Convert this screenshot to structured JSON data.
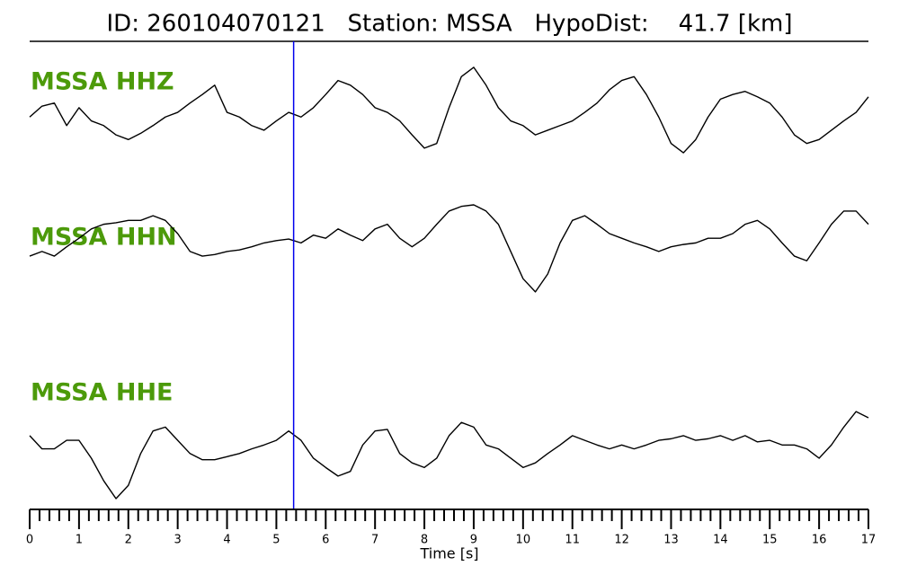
{
  "chart_data": {
    "type": "line",
    "title": "ID: 260104070121   Station: MSSA   HypoDist:    41.7 [km]",
    "xlabel": "Time [s]",
    "xlim": [
      0,
      17
    ],
    "ylim": [
      -1,
      1
    ],
    "xticks": [
      0,
      1,
      2,
      3,
      4,
      5,
      6,
      7,
      8,
      9,
      10,
      11,
      12,
      13,
      14,
      15,
      16,
      17
    ],
    "xminorticks": [
      0.2,
      0.4,
      0.6,
      0.8,
      1.2,
      1.4,
      1.6,
      1.8,
      2.2,
      2.4,
      2.6,
      2.8,
      3.2,
      3.4,
      3.6,
      3.8,
      4.2,
      4.4,
      4.6,
      4.8,
      5.2,
      5.4,
      5.6,
      5.8,
      6.2,
      6.4,
      6.6,
      6.8,
      7.2,
      7.4,
      7.6,
      7.8,
      8.2,
      8.4,
      8.6,
      8.8,
      9.2,
      9.4,
      9.6,
      9.8,
      10.2,
      10.4,
      10.6,
      10.8,
      11.2,
      11.4,
      11.6,
      11.8,
      12.2,
      12.4,
      12.6,
      12.8,
      13.2,
      13.4,
      13.6,
      13.8,
      14.2,
      14.4,
      14.6,
      14.8,
      15.2,
      15.4,
      15.6,
      15.8,
      16.2,
      16.4,
      16.6,
      16.8
    ],
    "marker_x": 5.35,
    "marker_color": "#0000ee",
    "label_color": "#4c9a0a",
    "x": [
      0,
      0.25,
      0.5,
      0.75,
      1,
      1.25,
      1.5,
      1.75,
      2,
      2.25,
      2.5,
      2.75,
      3,
      3.25,
      3.5,
      3.75,
      4,
      4.25,
      4.5,
      4.75,
      5,
      5.25,
      5.5,
      5.75,
      6,
      6.25,
      6.5,
      6.75,
      7,
      7.25,
      7.5,
      7.75,
      8,
      8.25,
      8.5,
      8.75,
      9,
      9.25,
      9.5,
      9.75,
      10,
      10.25,
      10.5,
      10.75,
      11,
      11.25,
      11.5,
      11.75,
      12,
      12.25,
      12.5,
      12.75,
      13,
      13.25,
      13.5,
      13.75,
      14,
      14.25,
      14.5,
      14.75,
      15,
      15.25,
      15.5,
      15.75,
      16,
      16.25,
      16.5,
      16.75,
      17
    ],
    "series": [
      {
        "name": "MSSA HHZ",
        "color": "#000000",
        "values": [
          0.13,
          0.27,
          0.31,
          0.02,
          0.25,
          0.08,
          0.02,
          -0.1,
          -0.16,
          -0.08,
          0.02,
          0.13,
          0.19,
          0.31,
          0.42,
          0.54,
          0.19,
          0.13,
          0.02,
          -0.04,
          0.08,
          0.19,
          0.13,
          0.25,
          0.42,
          0.6,
          0.54,
          0.42,
          0.25,
          0.19,
          0.08,
          -0.1,
          -0.27,
          -0.21,
          0.25,
          0.65,
          0.77,
          0.54,
          0.25,
          0.08,
          0.02,
          -0.1,
          -0.04,
          0.02,
          0.08,
          0.19,
          0.31,
          0.48,
          0.6,
          0.65,
          0.42,
          0.13,
          -0.21,
          -0.33,
          -0.16,
          0.13,
          0.36,
          0.42,
          0.46,
          0.39,
          0.31,
          0.13,
          -0.1,
          -0.21,
          -0.16,
          -0.04,
          0.08,
          0.19,
          0.39
        ]
      },
      {
        "name": "MSSA HHN",
        "color": "#000000",
        "values": [
          0.34,
          0.4,
          0.34,
          0.46,
          0.57,
          0.69,
          0.75,
          0.77,
          0.8,
          0.8,
          0.86,
          0.8,
          0.63,
          0.4,
          0.34,
          0.36,
          0.4,
          0.42,
          0.46,
          0.51,
          0.54,
          0.56,
          0.51,
          0.61,
          0.57,
          0.69,
          0.61,
          0.54,
          0.69,
          0.75,
          0.57,
          0.46,
          0.57,
          0.75,
          0.92,
          0.98,
          1.0,
          0.92,
          0.75,
          0.4,
          0.05,
          -0.12,
          0.11,
          0.51,
          0.8,
          0.86,
          0.75,
          0.63,
          0.57,
          0.51,
          0.46,
          0.4,
          0.46,
          0.49,
          0.51,
          0.57,
          0.57,
          0.63,
          0.75,
          0.8,
          0.69,
          0.51,
          0.34,
          0.28,
          0.51,
          0.75,
          0.92,
          0.92,
          0.75
        ]
      },
      {
        "name": "MSSA HHE",
        "color": "#000000",
        "values": [
          0.03,
          -0.14,
          -0.14,
          -0.03,
          -0.03,
          -0.26,
          -0.55,
          -0.78,
          -0.61,
          -0.2,
          0.09,
          0.14,
          -0.03,
          -0.2,
          -0.28,
          -0.28,
          -0.24,
          -0.2,
          -0.14,
          -0.09,
          -0.03,
          0.09,
          -0.03,
          -0.26,
          -0.38,
          -0.49,
          -0.43,
          -0.09,
          0.09,
          0.11,
          -0.2,
          -0.32,
          -0.38,
          -0.26,
          0.03,
          0.2,
          0.14,
          -0.09,
          -0.14,
          -0.26,
          -0.38,
          -0.32,
          -0.2,
          -0.09,
          0.03,
          -0.03,
          -0.09,
          -0.14,
          -0.09,
          -0.14,
          -0.09,
          -0.03,
          -0.01,
          0.03,
          -0.03,
          -0.01,
          0.03,
          -0.03,
          0.03,
          -0.05,
          -0.03,
          -0.09,
          -0.09,
          -0.14,
          -0.26,
          -0.09,
          0.14,
          0.34,
          0.26
        ]
      }
    ]
  }
}
